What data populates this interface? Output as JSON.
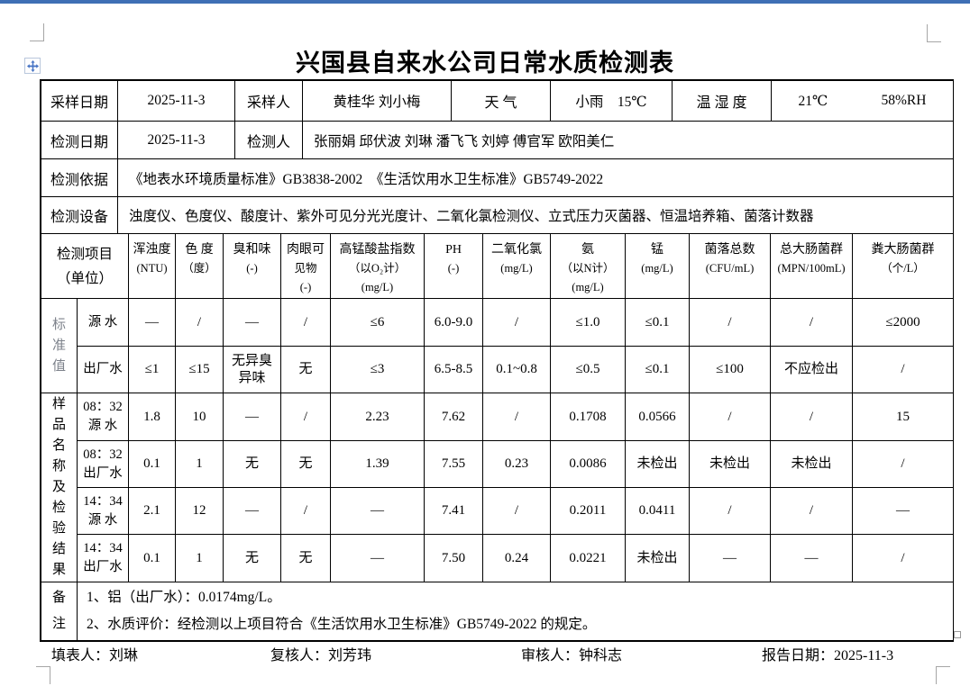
{
  "title": "兴国县自来水公司日常水质检测表",
  "info": {
    "sample_date_label": "采样日期",
    "sample_date": "2025-11-3",
    "sampler_label": "采样人",
    "samplers": "黄桂华 刘小梅",
    "weather_label": "天  气",
    "weather": "小雨　15℃",
    "humidity_label": "温 湿 度",
    "temperature": "21℃",
    "humidity": "58%RH",
    "test_date_label": "检测日期",
    "test_date": "2025-11-3",
    "tester_label": "检测人",
    "testers": "张丽娟 邱伏波 刘琳 潘飞飞 刘婷 傅官军 欧阳美仁",
    "basis_label": "检测依据",
    "basis": "《地表水环境质量标准》GB3838-2002　《生活饮用水卫生标准》GB5749-2022",
    "equipment_label": "检测设备",
    "equipment": "浊度仪、色度仪、酸度计、紫外可见分光光度计、二氧化氯检测仪、立式压力灭菌器、恒温培养箱、菌落计数器"
  },
  "grid": {
    "item_header_lines": [
      "检测项目",
      "（单位）"
    ],
    "columns": [
      {
        "lines": [
          "浑浊度",
          "(NTU)"
        ]
      },
      {
        "lines": [
          "色 度",
          "（度）"
        ]
      },
      {
        "lines": [
          "臭和味",
          "(-)"
        ]
      },
      {
        "lines": [
          "肉眼可",
          "见物",
          "(-)"
        ]
      },
      {
        "lines": [
          "高锰酸盐指数",
          "（以O₂计）",
          "(mg/L)"
        ]
      },
      {
        "lines": [
          "PH",
          "(-)"
        ]
      },
      {
        "lines": [
          "二氧化氯",
          "(mg/L)"
        ]
      },
      {
        "lines": [
          "氨",
          "（以N计）",
          "(mg/L)"
        ]
      },
      {
        "lines": [
          "锰",
          "(mg/L)"
        ]
      },
      {
        "lines": [
          "菌落总数",
          "(CFU/mL)"
        ]
      },
      {
        "lines": [
          "总大肠菌群",
          "(MPN/100mL)"
        ]
      },
      {
        "lines": [
          "粪大肠菌群",
          "（个/L）"
        ]
      }
    ],
    "groups": [
      {
        "label_chars": [
          "标",
          "准",
          "值"
        ],
        "muted": true,
        "rows": [
          {
            "name_lines": [
              "源  水"
            ],
            "values": [
              "—",
              "/",
              "—",
              "/",
              "≤6",
              "6.0-9.0",
              "/",
              "≤1.0",
              "≤0.1",
              "/",
              "/",
              "≤2000"
            ]
          },
          {
            "name_lines": [
              "出厂水"
            ],
            "values": [
              "≤1",
              "≤15",
              "无异臭\n异味",
              "无",
              "≤3",
              "6.5-8.5",
              "0.1~0.8",
              "≤0.5",
              "≤0.1",
              "≤100",
              "不应检出",
              "/"
            ]
          }
        ]
      },
      {
        "label_chars": [
          "样",
          "品",
          "名",
          "称",
          "及",
          "检",
          "验",
          "结",
          "果"
        ],
        "muted": false,
        "rows": [
          {
            "name_lines": [
              "08：32",
              "源 水"
            ],
            "values": [
              "1.8",
              "10",
              "—",
              "/",
              "2.23",
              "7.62",
              "/",
              "0.1708",
              "0.0566",
              "/",
              "/",
              "15"
            ]
          },
          {
            "name_lines": [
              "08：32",
              "出厂水"
            ],
            "values": [
              "0.1",
              "1",
              "无",
              "无",
              "1.39",
              "7.55",
              "0.23",
              "0.0086",
              "未检出",
              "未检出",
              "未检出",
              "/"
            ]
          },
          {
            "name_lines": [
              "14：34",
              "源 水"
            ],
            "values": [
              "2.1",
              "12",
              "—",
              "/",
              "—",
              "7.41",
              "/",
              "0.2011",
              "0.0411",
              "/",
              "/",
              "—"
            ]
          },
          {
            "name_lines": [
              "14：34",
              "出厂水"
            ],
            "values": [
              "0.1",
              "1",
              "无",
              "无",
              "—",
              "7.50",
              "0.24",
              "0.0221",
              "未检出",
              "—",
              "—",
              "/"
            ]
          }
        ]
      }
    ],
    "remark_label_chars": [
      "备",
      "注"
    ],
    "remarks": [
      "1、铝（出厂水）：0.0174mg/L。",
      "2、水质评价：经检测以上项目符合《生活饮用水卫生标准》GB5749-2022 的规定。"
    ]
  },
  "footer": {
    "filled_by": "填表人：刘琳",
    "reviewed_by": "复核人：刘芳玮",
    "audited_by": "审核人：钟科志",
    "report_date": "报告日期：2025-11-3"
  }
}
